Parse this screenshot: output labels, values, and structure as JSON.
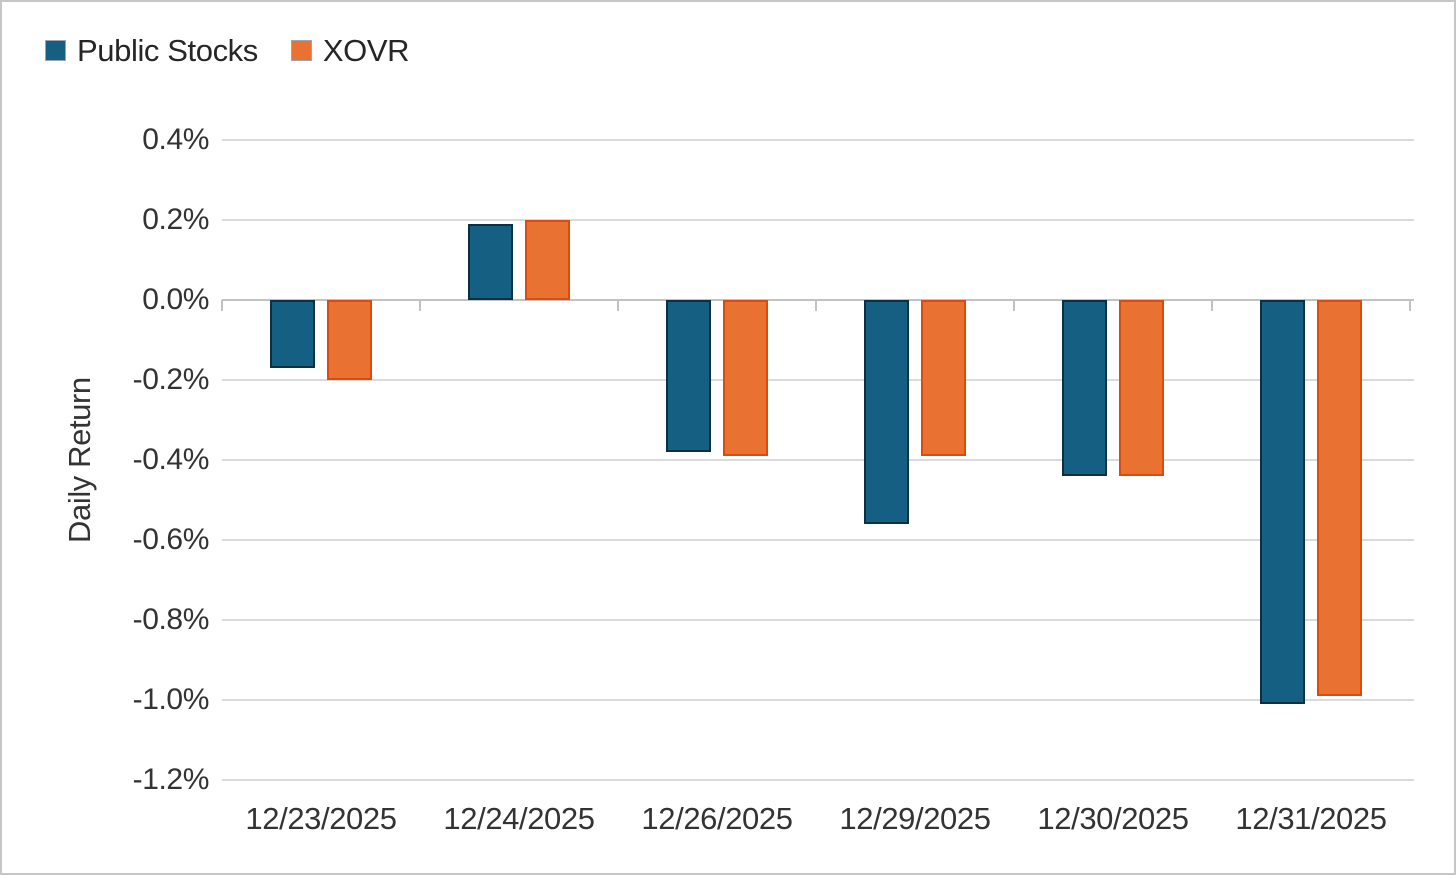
{
  "legend": {
    "items": [
      {
        "label": "Public Stocks",
        "color": "#156082"
      },
      {
        "label": "XOVR",
        "color": "#E97132"
      }
    ]
  },
  "y_axis_title": "Daily Return",
  "chart_data": {
    "type": "bar",
    "title": "",
    "xlabel": "",
    "ylabel": "Daily Return",
    "categories": [
      "12/23/2025",
      "12/24/2025",
      "12/26/2025",
      "12/29/2025",
      "12/30/2025",
      "12/31/2025"
    ],
    "series": [
      {
        "name": "Public Stocks",
        "fill_color": "#156082",
        "border_color": "#0B3041",
        "values_pct": [
          -0.17,
          0.19,
          -0.38,
          -0.56,
          -0.44,
          -1.01
        ]
      },
      {
        "name": "XOVR",
        "fill_color": "#E97132",
        "border_color": "#DC4A0E",
        "values_pct": [
          -0.2,
          0.2,
          -0.39,
          -0.39,
          -0.44,
          -0.99
        ]
      }
    ],
    "yticks_pct": [
      0.4,
      0.2,
      0.0,
      -0.2,
      -0.4,
      -0.6,
      -0.8,
      -1.0,
      -1.2
    ],
    "ytick_suffix": "%",
    "ylim_pct": [
      -1.2,
      0.4
    ],
    "grid": true,
    "gridline_color": "#dadada",
    "legend_position": "top-left"
  }
}
